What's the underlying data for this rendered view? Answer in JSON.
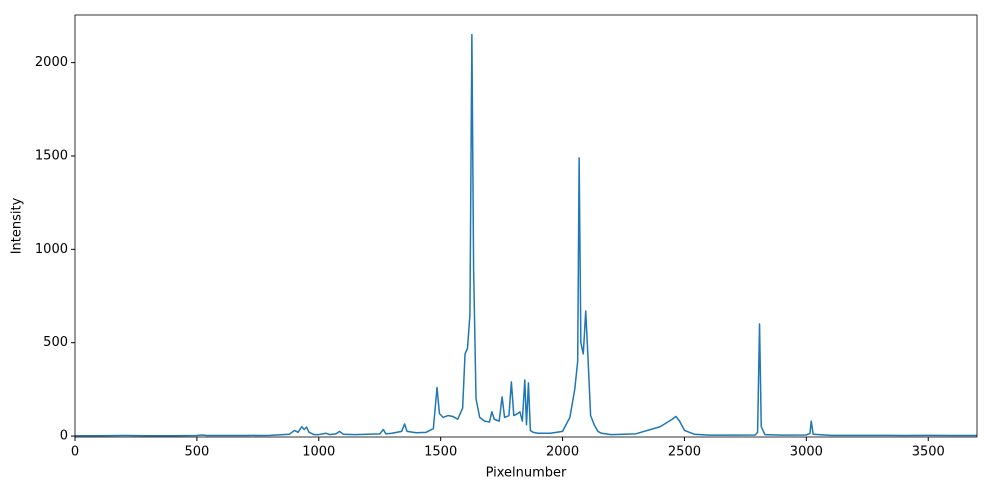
{
  "chart_data": {
    "type": "line",
    "x_label": "Pixelnumber",
    "y_label": "Intensity",
    "color": "#1f77b4",
    "grid": false,
    "xlim": [
      0,
      3700
    ],
    "xticks": [
      0,
      500,
      1000,
      1500,
      2000,
      2500,
      3000,
      3500
    ],
    "ylim": [
      -5,
      2255
    ],
    "yticks": [
      0,
      500,
      1000,
      1500,
      2000
    ],
    "x": [
      0,
      100,
      200,
      300,
      400,
      500,
      520,
      540,
      600,
      700,
      800,
      880,
      900,
      915,
      930,
      940,
      950,
      960,
      980,
      1000,
      1030,
      1045,
      1070,
      1085,
      1100,
      1150,
      1200,
      1250,
      1265,
      1275,
      1300,
      1340,
      1352,
      1362,
      1400,
      1440,
      1470,
      1485,
      1495,
      1510,
      1530,
      1550,
      1570,
      1590,
      1600,
      1610,
      1620,
      1628,
      1635,
      1645,
      1660,
      1680,
      1700,
      1710,
      1720,
      1740,
      1752,
      1762,
      1780,
      1790,
      1800,
      1815,
      1825,
      1835,
      1845,
      1852,
      1860,
      1868,
      1880,
      1900,
      1950,
      2000,
      2030,
      2050,
      2062,
      2068,
      2075,
      2085,
      2095,
      2105,
      2115,
      2130,
      2145,
      2160,
      2200,
      2300,
      2400,
      2450,
      2465,
      2480,
      2500,
      2540,
      2600,
      2700,
      2790,
      2800,
      2808,
      2815,
      2830,
      2900,
      3000,
      3015,
      3020,
      3028,
      3100,
      3200,
      3300,
      3400,
      3500,
      3600,
      3700
    ],
    "values": [
      2,
      2,
      3,
      2,
      2,
      3,
      6,
      3,
      3,
      3,
      4,
      10,
      30,
      20,
      50,
      35,
      48,
      20,
      8,
      8,
      15,
      8,
      12,
      25,
      10,
      8,
      10,
      12,
      35,
      12,
      15,
      25,
      65,
      25,
      18,
      20,
      40,
      260,
      120,
      100,
      110,
      105,
      90,
      150,
      440,
      470,
      650,
      2150,
      900,
      200,
      100,
      80,
      75,
      130,
      90,
      80,
      210,
      100,
      110,
      290,
      110,
      120,
      130,
      80,
      300,
      60,
      285,
      30,
      20,
      15,
      15,
      25,
      100,
      250,
      400,
      1490,
      500,
      440,
      670,
      400,
      110,
      60,
      25,
      15,
      8,
      12,
      50,
      90,
      105,
      80,
      30,
      10,
      5,
      5,
      6,
      20,
      600,
      50,
      8,
      5,
      6,
      15,
      80,
      10,
      4,
      4,
      4,
      3,
      4,
      3,
      3
    ]
  }
}
